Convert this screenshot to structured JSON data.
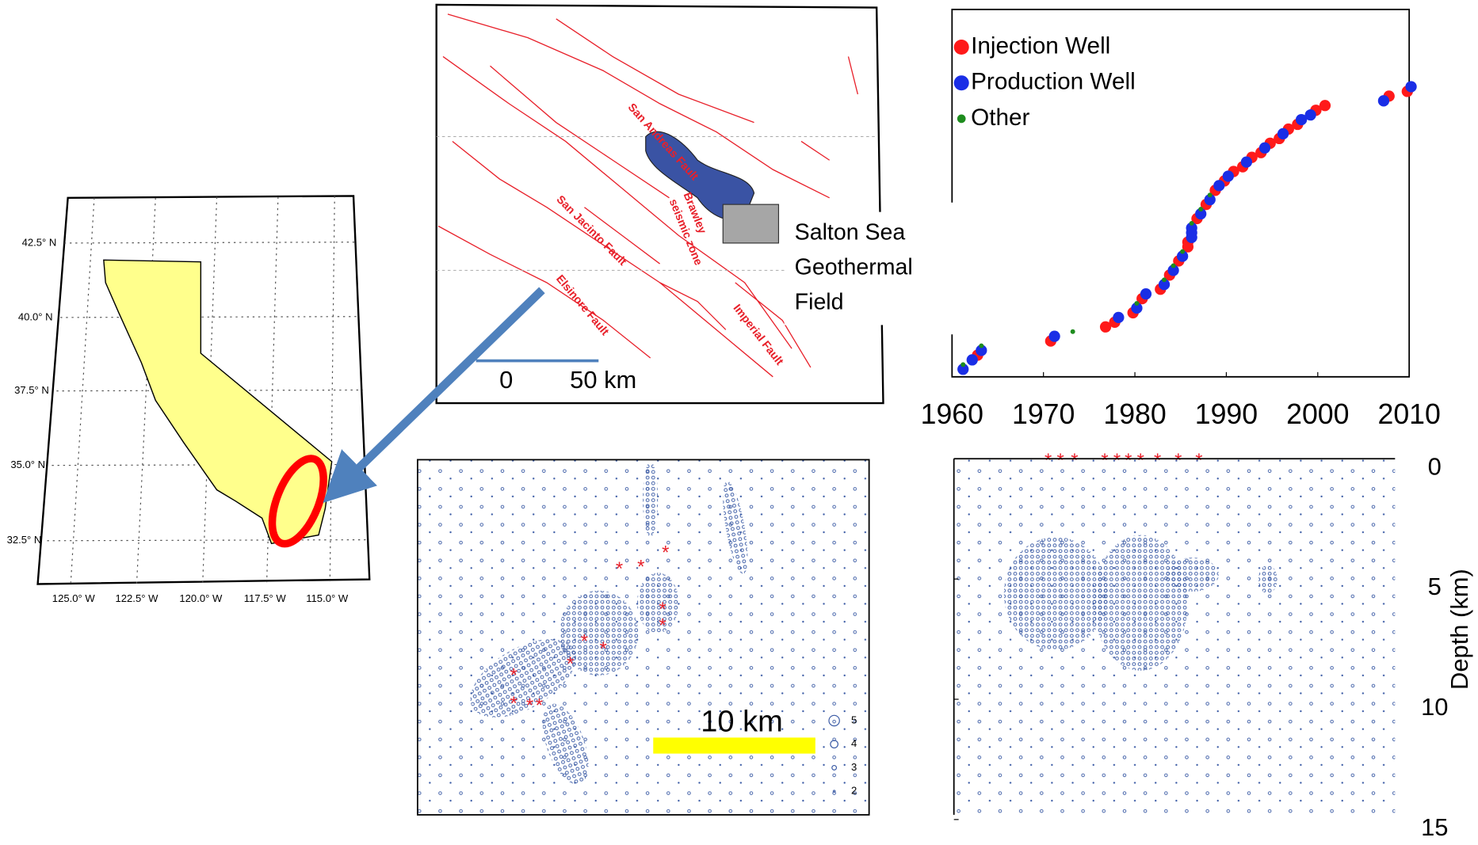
{
  "maps": {
    "california": {
      "lat_labels": [
        "42.5° N",
        "40.0° N",
        "37.5° N",
        "35.0° N",
        "32.5° N"
      ],
      "lon_labels": [
        "125.0° W",
        "122.5° W",
        "120.0° W",
        "117.5° W",
        "115.0° W"
      ]
    },
    "faults": {
      "labels": [
        "San Andreas Fault",
        "Brawley",
        "seismic zone",
        "San Jacinto Fault",
        "Elsinore Fault",
        "Imperial Fault"
      ],
      "field_label": [
        "Salton Sea",
        "Geothermal",
        "Field"
      ],
      "scale_labels": [
        "0",
        "50 km"
      ]
    },
    "seismicity": {
      "scale_label": "10 km",
      "magnitude_legend": [
        5,
        4,
        3,
        2
      ]
    }
  },
  "chart_data": [
    {
      "type": "scatter",
      "xlim": [
        1960,
        2010
      ],
      "xticks": [
        1960,
        1970,
        1980,
        1990,
        2000,
        2010
      ],
      "series": [
        {
          "name": "Injection Well",
          "color": "#ff1a1a",
          "x": [
            1963,
            1971,
            1977,
            1978,
            1980,
            1981,
            1983,
            1984,
            1985,
            1986,
            1986,
            1987,
            1988,
            1989,
            1990,
            1991,
            1992,
            1993,
            1994,
            1995,
            1996,
            1997,
            1998,
            2000,
            2001,
            2008,
            2010
          ]
        },
        {
          "name": "Production Well",
          "color": "#1a2ee6",
          "x": [
            1961,
            1962,
            1963,
            1971,
            1978,
            1980,
            1981,
            1983,
            1984,
            1985,
            1986,
            1986,
            1986,
            1987,
            1988,
            1989,
            1990,
            1992,
            1994,
            1996,
            1998,
            1999,
            2007,
            2010
          ]
        },
        {
          "name": "Other",
          "color": "#1e8c1e",
          "x": [
            1961,
            1963,
            1973,
            1980,
            1983,
            1984,
            1985,
            1986,
            1987,
            1988
          ]
        }
      ]
    },
    {
      "type": "scatter",
      "y_label": "Depth (km)",
      "ylim": [
        0,
        15
      ],
      "yticks": [
        0,
        5,
        10,
        15
      ]
    }
  ]
}
